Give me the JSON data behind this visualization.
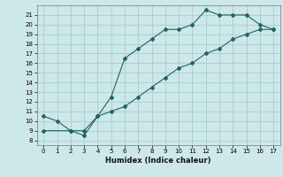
{
  "xlabel": "Humidex (Indice chaleur)",
  "bg_color": "#cce8e8",
  "grid_color": "#aacccc",
  "line_color": "#1a6666",
  "xlim": [
    -0.5,
    17.5
  ],
  "ylim": [
    7.5,
    22.0
  ],
  "xticks": [
    0,
    1,
    2,
    3,
    4,
    5,
    6,
    7,
    8,
    9,
    10,
    11,
    12,
    13,
    14,
    15,
    16,
    17
  ],
  "yticks": [
    8,
    9,
    10,
    11,
    12,
    13,
    14,
    15,
    16,
    17,
    18,
    19,
    20,
    21
  ],
  "curve1_x": [
    0,
    1,
    2,
    3,
    4,
    5,
    6,
    7,
    8,
    9,
    10,
    11,
    12,
    13,
    14,
    15,
    16,
    17
  ],
  "curve1_y": [
    10.5,
    10.0,
    9.0,
    8.5,
    10.5,
    12.5,
    16.5,
    17.5,
    18.5,
    19.5,
    19.5,
    20.0,
    21.5,
    21.0,
    21.0,
    21.0,
    20.0,
    19.5
  ],
  "curve2_x": [
    0,
    2,
    3,
    4,
    5,
    6,
    7,
    8,
    9,
    10,
    11,
    12,
    13,
    14,
    15,
    16,
    17
  ],
  "curve2_y": [
    9.0,
    9.0,
    9.0,
    10.5,
    11.0,
    11.5,
    12.5,
    13.5,
    14.5,
    15.5,
    16.0,
    17.0,
    17.5,
    18.5,
    19.0,
    19.5,
    19.5
  ]
}
